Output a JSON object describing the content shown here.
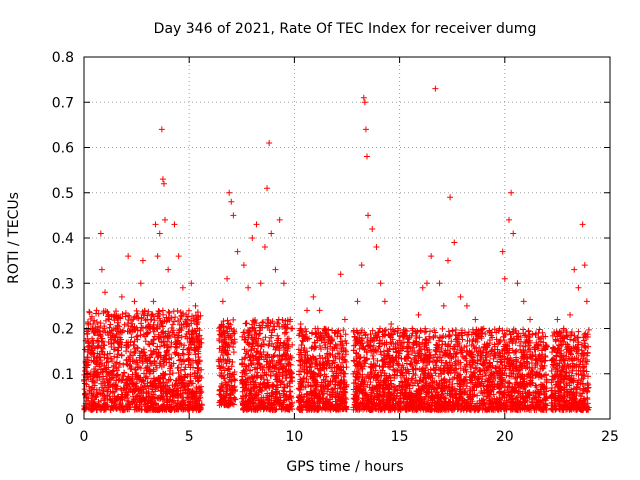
{
  "chart_data": {
    "type": "scatter",
    "title": "Day 346 of 2021, Rate Of TEC Index for receiver dumg",
    "xlabel": "GPS time / hours",
    "ylabel": "ROTI / TECUs",
    "xlim": [
      0,
      25
    ],
    "ylim": [
      0,
      0.8
    ],
    "xticks": [
      "0",
      "5",
      "10",
      "15",
      "20",
      "25"
    ],
    "yticks": [
      "0",
      "0.1",
      "0.2",
      "0.3",
      "0.4",
      "0.5",
      "0.6",
      "0.7",
      "0.8"
    ],
    "grid": true,
    "marker": "+",
    "color": "#ff0000",
    "series": [
      {
        "values_note": "ROTI samples (hour, TECU) read from the plot; dense cloud 0.02-0.25 TECU plus isolated spikes",
        "points": [
          [
            0.2,
            0.12
          ],
          [
            0.4,
            0.2
          ],
          [
            0.6,
            0.24
          ],
          [
            0.8,
            0.41
          ],
          [
            0.85,
            0.33
          ],
          [
            1.0,
            0.28
          ],
          [
            1.2,
            0.22
          ],
          [
            1.5,
            0.18
          ],
          [
            1.8,
            0.27
          ],
          [
            2.0,
            0.15
          ],
          [
            2.1,
            0.36
          ],
          [
            2.4,
            0.26
          ],
          [
            2.7,
            0.3
          ],
          [
            2.8,
            0.35
          ],
          [
            3.0,
            0.22
          ],
          [
            3.3,
            0.26
          ],
          [
            3.4,
            0.43
          ],
          [
            3.5,
            0.36
          ],
          [
            3.6,
            0.41
          ],
          [
            3.7,
            0.64
          ],
          [
            3.75,
            0.53
          ],
          [
            3.8,
            0.52
          ],
          [
            3.85,
            0.44
          ],
          [
            4.0,
            0.33
          ],
          [
            4.3,
            0.43
          ],
          [
            4.5,
            0.36
          ],
          [
            4.7,
            0.29
          ],
          [
            4.9,
            0.22
          ],
          [
            5.1,
            0.3
          ],
          [
            5.3,
            0.25
          ],
          [
            5.4,
            0.2
          ],
          [
            6.6,
            0.26
          ],
          [
            6.8,
            0.31
          ],
          [
            6.9,
            0.5
          ],
          [
            7.0,
            0.48
          ],
          [
            7.1,
            0.45
          ],
          [
            7.3,
            0.37
          ],
          [
            7.6,
            0.34
          ],
          [
            7.8,
            0.29
          ],
          [
            8.0,
            0.4
          ],
          [
            8.2,
            0.43
          ],
          [
            8.4,
            0.3
          ],
          [
            8.6,
            0.38
          ],
          [
            8.7,
            0.51
          ],
          [
            8.8,
            0.61
          ],
          [
            8.9,
            0.41
          ],
          [
            9.1,
            0.33
          ],
          [
            9.3,
            0.44
          ],
          [
            9.5,
            0.3
          ],
          [
            9.8,
            0.22
          ],
          [
            10.3,
            0.21
          ],
          [
            10.6,
            0.24
          ],
          [
            10.9,
            0.27
          ],
          [
            11.2,
            0.24
          ],
          [
            11.5,
            0.19
          ],
          [
            11.7,
            0.16
          ],
          [
            12.2,
            0.32
          ],
          [
            12.4,
            0.22
          ],
          [
            13.0,
            0.26
          ],
          [
            13.2,
            0.34
          ],
          [
            13.3,
            0.71
          ],
          [
            13.35,
            0.7
          ],
          [
            13.4,
            0.64
          ],
          [
            13.45,
            0.58
          ],
          [
            13.5,
            0.45
          ],
          [
            13.7,
            0.42
          ],
          [
            13.9,
            0.38
          ],
          [
            14.1,
            0.3
          ],
          [
            14.3,
            0.26
          ],
          [
            14.6,
            0.21
          ],
          [
            14.9,
            0.19
          ],
          [
            15.2,
            0.16
          ],
          [
            15.6,
            0.2
          ],
          [
            15.9,
            0.23
          ],
          [
            16.1,
            0.29
          ],
          [
            16.3,
            0.3
          ],
          [
            16.5,
            0.36
          ],
          [
            16.7,
            0.73
          ],
          [
            16.9,
            0.3
          ],
          [
            17.1,
            0.25
          ],
          [
            17.3,
            0.35
          ],
          [
            17.4,
            0.49
          ],
          [
            17.6,
            0.39
          ],
          [
            17.9,
            0.27
          ],
          [
            18.2,
            0.25
          ],
          [
            18.6,
            0.22
          ],
          [
            19.0,
            0.2
          ],
          [
            19.4,
            0.18
          ],
          [
            19.9,
            0.37
          ],
          [
            20.0,
            0.31
          ],
          [
            20.2,
            0.44
          ],
          [
            20.3,
            0.5
          ],
          [
            20.4,
            0.41
          ],
          [
            20.6,
            0.3
          ],
          [
            20.9,
            0.26
          ],
          [
            21.2,
            0.22
          ],
          [
            21.6,
            0.19
          ],
          [
            22.0,
            0.16
          ],
          [
            22.5,
            0.22
          ],
          [
            22.8,
            0.2
          ],
          [
            23.1,
            0.23
          ],
          [
            23.3,
            0.33
          ],
          [
            23.5,
            0.29
          ],
          [
            23.7,
            0.43
          ],
          [
            23.8,
            0.34
          ],
          [
            23.9,
            0.26
          ]
        ],
        "dense_segments": [
          {
            "x": [
              0.0,
              5.6
            ],
            "y": [
              0.02,
              0.24
            ]
          },
          {
            "x": [
              6.4,
              7.2
            ],
            "y": [
              0.03,
              0.22
            ]
          },
          {
            "x": [
              7.5,
              9.9
            ],
            "y": [
              0.02,
              0.22
            ]
          },
          {
            "x": [
              10.2,
              12.5
            ],
            "y": [
              0.02,
              0.2
            ]
          },
          {
            "x": [
              12.8,
              19.9
            ],
            "y": [
              0.02,
              0.2
            ]
          },
          {
            "x": [
              19.9,
              22.0
            ],
            "y": [
              0.02,
              0.2
            ]
          },
          {
            "x": [
              22.2,
              24.0
            ],
            "y": [
              0.02,
              0.2
            ]
          }
        ]
      }
    ]
  }
}
